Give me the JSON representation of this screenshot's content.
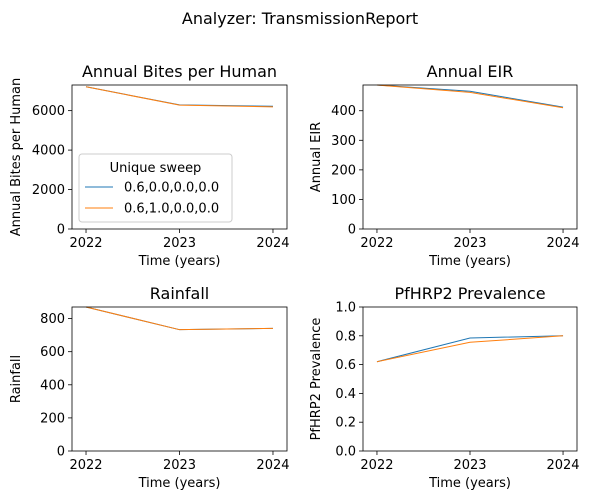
{
  "suptitle": "Analyzer: TransmissionReport",
  "colors": {
    "series_1": "#1f77b4",
    "series_2": "#ff7f0e"
  },
  "legend": {
    "title": "Unique sweep",
    "entries": [
      "0.6,0.0,0.0,0.0",
      "0.6,1.0,0.0,0.0"
    ],
    "location": "lower-left of first panel"
  },
  "chart_data": [
    {
      "type": "line",
      "title": "Annual Bites per Human",
      "xlabel": "Time (years)",
      "ylabel": "Annual Bites per Human",
      "x": [
        2022,
        2023,
        2024
      ],
      "xticks": [
        "2022",
        "2023",
        "2024"
      ],
      "yticks": [
        "0",
        "2000",
        "4000",
        "6000"
      ],
      "xlim": [
        2021.85,
        2024.15
      ],
      "ylim": [
        0,
        7300
      ],
      "grid": false,
      "legend": true,
      "series": [
        {
          "name": "0.6,0.0,0.0,0.0",
          "values": [
            7210,
            6290,
            6220
          ]
        },
        {
          "name": "0.6,1.0,0.0,0.0",
          "values": [
            7210,
            6280,
            6190
          ]
        }
      ]
    },
    {
      "type": "line",
      "title": "Annual EIR",
      "xlabel": "Time (years)",
      "ylabel": "Annual EIR",
      "x": [
        2022,
        2023,
        2024
      ],
      "xticks": [
        "2022",
        "2023",
        "2024"
      ],
      "yticks": [
        "0",
        "100",
        "200",
        "300",
        "400"
      ],
      "xlim": [
        2021.85,
        2024.15
      ],
      "ylim": [
        0,
        487
      ],
      "grid": false,
      "legend": false,
      "series": [
        {
          "name": "0.6,0.0,0.0,0.0",
          "values": [
            487,
            466,
            412
          ]
        },
        {
          "name": "0.6,1.0,0.0,0.0",
          "values": [
            487,
            462,
            410
          ]
        }
      ]
    },
    {
      "type": "line",
      "title": "Rainfall",
      "xlabel": "Time (years)",
      "ylabel": "Rainfall",
      "x": [
        2022,
        2023,
        2024
      ],
      "xticks": [
        "2022",
        "2023",
        "2024"
      ],
      "yticks": [
        "0",
        "200",
        "400",
        "600",
        "800"
      ],
      "xlim": [
        2021.85,
        2024.15
      ],
      "ylim": [
        0,
        870
      ],
      "grid": false,
      "legend": false,
      "series": [
        {
          "name": "0.6,0.0,0.0,0.0",
          "values": [
            870,
            733,
            741
          ]
        },
        {
          "name": "0.6,1.0,0.0,0.0",
          "values": [
            870,
            733,
            741
          ]
        }
      ]
    },
    {
      "type": "line",
      "title": "PfHRP2 Prevalence",
      "xlabel": "Time (years)",
      "ylabel": "PfHRP2 Prevalence",
      "x": [
        2022,
        2023,
        2024
      ],
      "xticks": [
        "2022",
        "2023",
        "2024"
      ],
      "yticks": [
        "0.0",
        "0.2",
        "0.4",
        "0.6",
        "0.8",
        "1.0"
      ],
      "xlim": [
        2021.85,
        2024.15
      ],
      "ylim": [
        0,
        1.0
      ],
      "grid": false,
      "legend": false,
      "series": [
        {
          "name": "0.6,0.0,0.0,0.0",
          "values": [
            0.62,
            0.785,
            0.8
          ]
        },
        {
          "name": "0.6,1.0,0.0,0.0",
          "values": [
            0.62,
            0.755,
            0.8
          ]
        }
      ]
    }
  ]
}
